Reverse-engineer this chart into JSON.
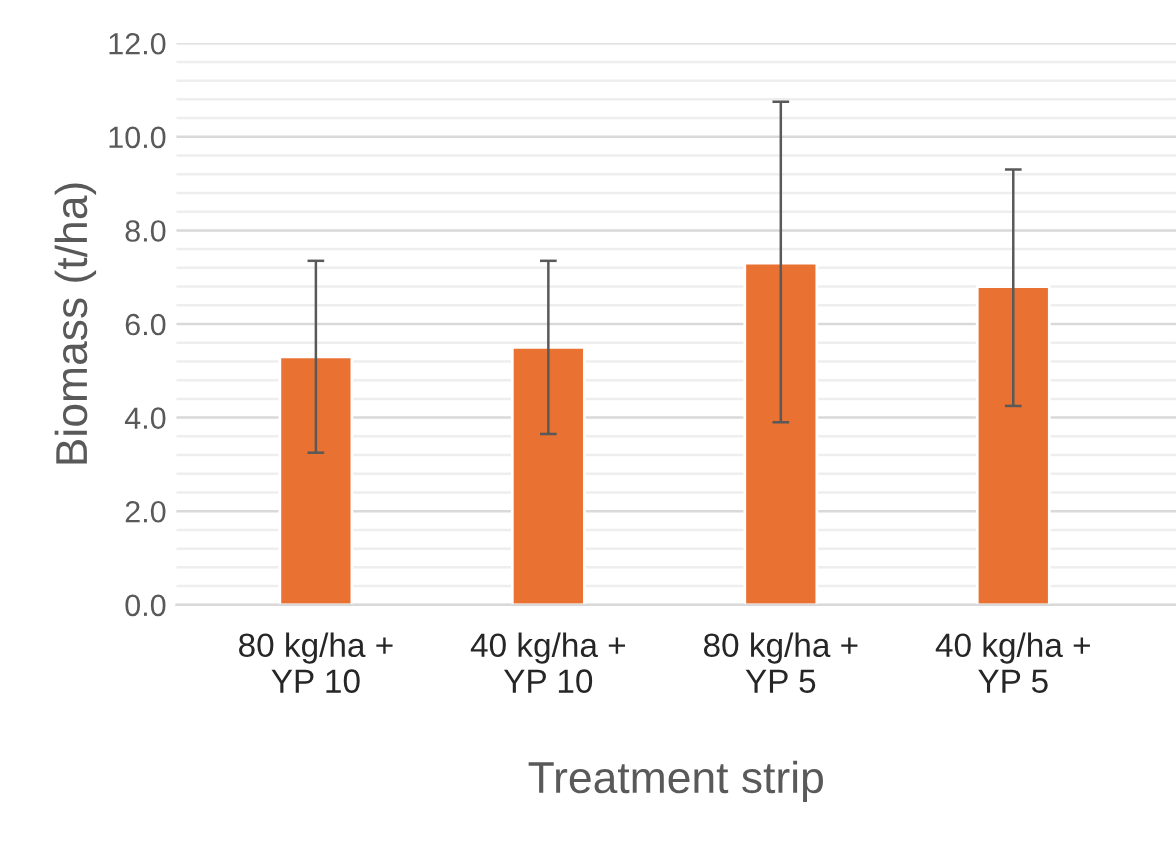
{
  "chart_data": {
    "type": "bar",
    "xlabel": "Treatment strip",
    "ylabel": "Biomass (t/ha)",
    "categories": [
      "80 kg/ha +\nYP 10",
      "40 kg/ha +\nYP 10",
      "80 kg/ha +\nYP 5",
      "40 kg/ha +\nYP 5"
    ],
    "values": [
      5.3,
      5.5,
      7.3,
      6.8
    ],
    "errors": [
      [
        3.25,
        7.35
      ],
      [
        3.65,
        7.35
      ],
      [
        3.9,
        10.75
      ],
      [
        4.25,
        9.3
      ]
    ],
    "color": "#e97132",
    "ylim": [
      0,
      12
    ],
    "yticks": [
      {
        "value": 0,
        "label": "0.0"
      },
      {
        "value": 0.4,
        "label": null
      },
      {
        "value": 0.8,
        "label": null
      },
      {
        "value": 1.2,
        "label": null
      },
      {
        "value": 1.6,
        "label": null
      },
      {
        "value": 2,
        "label": "2.0"
      },
      {
        "value": 2.4,
        "label": null
      },
      {
        "value": 2.8,
        "label": null
      },
      {
        "value": 3.2,
        "label": null
      },
      {
        "value": 3.6,
        "label": null
      },
      {
        "value": 4,
        "label": "4.0"
      },
      {
        "value": 4.4,
        "label": null
      },
      {
        "value": 4.8,
        "label": null
      },
      {
        "value": 5.2,
        "label": null
      },
      {
        "value": 5.6,
        "label": null
      },
      {
        "value": 6,
        "label": "6.0"
      },
      {
        "value": 6.4,
        "label": null
      },
      {
        "value": 6.8,
        "label": null
      },
      {
        "value": 7.2,
        "label": null
      },
      {
        "value": 7.6,
        "label": null
      },
      {
        "value": 8,
        "label": "8.0"
      },
      {
        "value": 8.4,
        "label": null
      },
      {
        "value": 8.8,
        "label": null
      },
      {
        "value": 9.2,
        "label": null
      },
      {
        "value": 9.6,
        "label": null
      },
      {
        "value": 10,
        "label": "10.0"
      },
      {
        "value": 10.4,
        "label": null
      },
      {
        "value": 10.8,
        "label": null
      },
      {
        "value": 11.2,
        "label": null
      },
      {
        "value": 11.6,
        "label": null
      },
      {
        "value": 12,
        "label": "12.0"
      }
    ],
    "grid": "y"
  }
}
